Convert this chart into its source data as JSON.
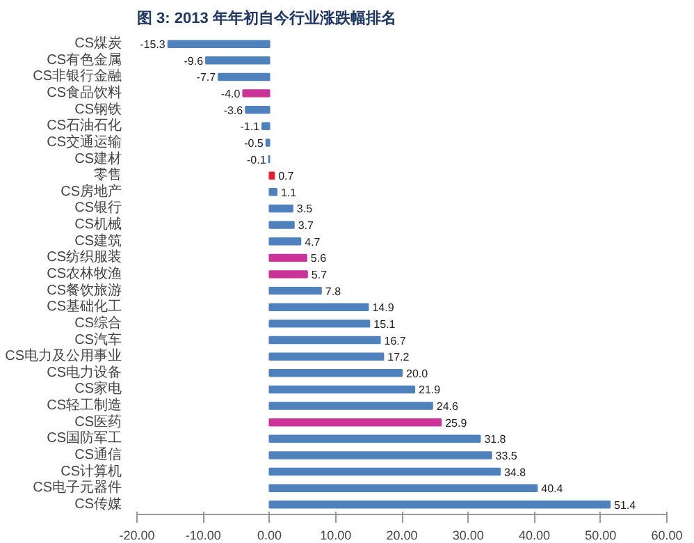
{
  "chart_data": {
    "type": "bar",
    "orientation": "horizontal",
    "title": "图 3:  2013 年年初自今行业涨跌幅排名",
    "categories": [
      "CS煤炭",
      "CS有色金属",
      "CS非银行金融",
      "CS食品饮料",
      "CS钢铁",
      "CS石油石化",
      "CS交通运输",
      "CS建材",
      "零售",
      "CS房地产",
      "CS银行",
      "CS机械",
      "CS建筑",
      "CS纺织服装",
      "CS农林牧渔",
      "CS餐饮旅游",
      "CS基础化工",
      "CS综合",
      "CS汽车",
      "CS电力及公用事业",
      "CS电力设备",
      "CS家电",
      "CS轻工制造",
      "CS医药",
      "CS国防军工",
      "CS通信",
      "CS计算机",
      "CS电子元器件",
      "CS传媒"
    ],
    "values": [
      -15.3,
      -9.6,
      -7.7,
      -4.0,
      -3.6,
      -1.1,
      -0.5,
      -0.1,
      0.7,
      1.1,
      3.5,
      3.7,
      4.7,
      5.6,
      5.7,
      7.8,
      14.9,
      15.1,
      16.7,
      17.2,
      20.0,
      21.9,
      24.6,
      25.9,
      31.8,
      33.5,
      34.8,
      40.4,
      51.4
    ],
    "value_labels": [
      "-15.3",
      "-9.6",
      "-7.7",
      "-4.0",
      "-3.6",
      "-1.1",
      "-0.5",
      "-0.1",
      "0.7",
      "1.1",
      "3.5",
      "3.7",
      "4.7",
      "5.6",
      "5.7",
      "7.8",
      "14.9",
      "15.1",
      "16.7",
      "17.2",
      "20.0",
      "21.9",
      "24.6",
      "25.9",
      "31.8",
      "33.5",
      "34.8",
      "40.4",
      "51.4"
    ],
    "colors": [
      "#4f81bd",
      "#4f81bd",
      "#4f81bd",
      "#cc3399",
      "#4f81bd",
      "#4f81bd",
      "#4f81bd",
      "#4f81bd",
      "#e6202a",
      "#4f81bd",
      "#4f81bd",
      "#4f81bd",
      "#4f81bd",
      "#cc3399",
      "#cc3399",
      "#4f81bd",
      "#4f81bd",
      "#4f81bd",
      "#4f81bd",
      "#4f81bd",
      "#4f81bd",
      "#4f81bd",
      "#4f81bd",
      "#cc3399",
      "#4f81bd",
      "#4f81bd",
      "#4f81bd",
      "#4f81bd",
      "#4f81bd"
    ],
    "xlim": [
      -20,
      60
    ],
    "xticks": [
      {
        "value": -20,
        "label": "-20.00"
      },
      {
        "value": -10,
        "label": "-10.00"
      },
      {
        "value": 0,
        "label": "0.00"
      },
      {
        "value": 10,
        "label": "10.00"
      },
      {
        "value": 20,
        "label": "20.00"
      },
      {
        "value": 30,
        "label": "30.00"
      },
      {
        "value": 40,
        "label": "40.00"
      },
      {
        "value": 50,
        "label": "50.00"
      },
      {
        "value": 60,
        "label": "60.00"
      }
    ],
    "grid": false
  }
}
